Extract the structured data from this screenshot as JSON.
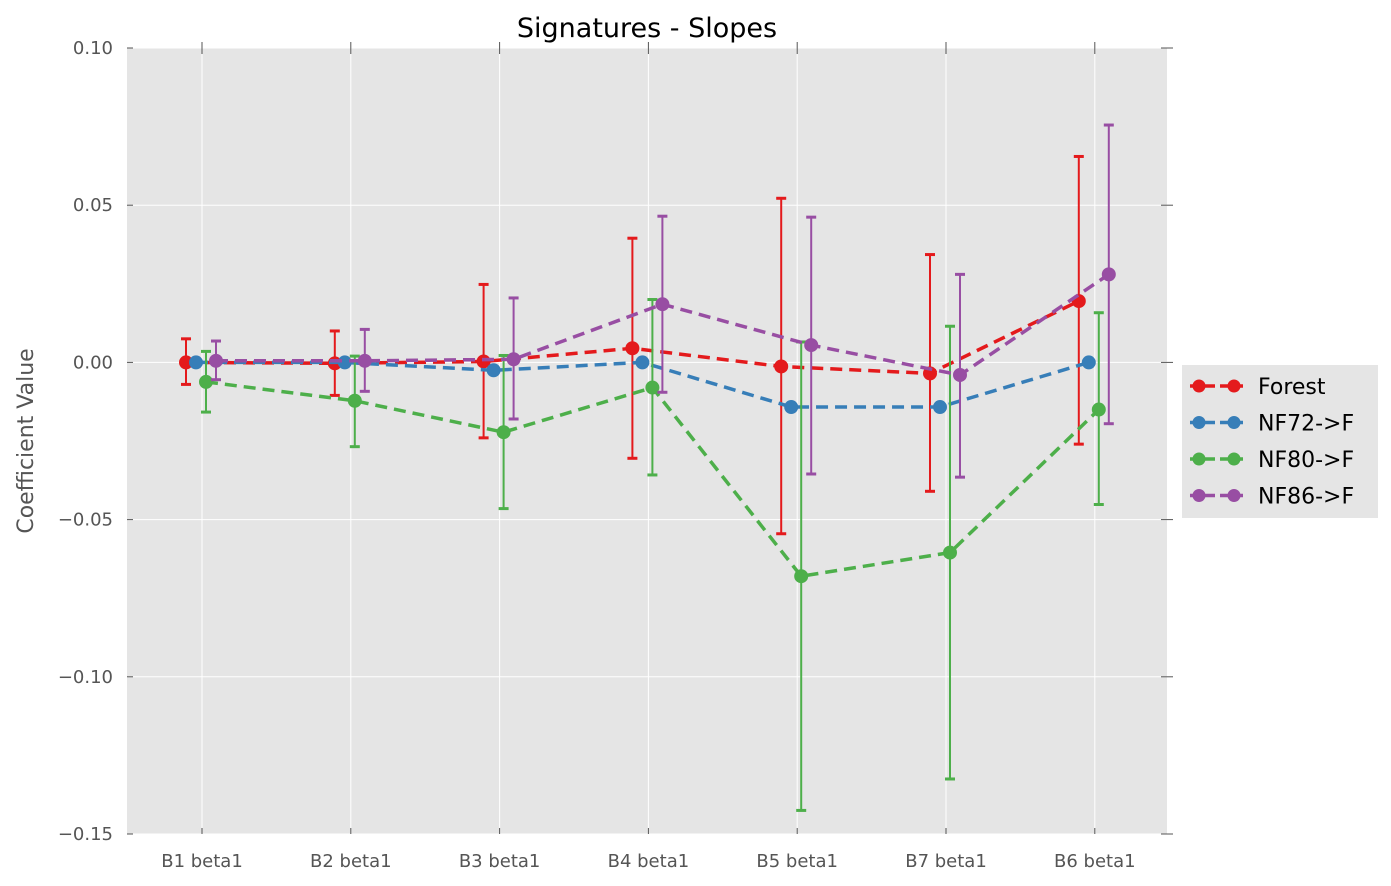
{
  "chart_data": {
    "type": "line",
    "title": "Signatures - Slopes",
    "xlabel": "",
    "ylabel": "Coefficient Value",
    "categories": [
      "B1 beta1",
      "B2 beta1",
      "B3 beta1",
      "B4 beta1",
      "B5 beta1",
      "B7 beta1",
      "B6 beta1"
    ],
    "ylim": [
      -0.15,
      0.1
    ],
    "yticks": [
      0.1,
      0.05,
      0.0,
      -0.05,
      -0.1,
      -0.15
    ],
    "ytick_labels": [
      "0.10",
      "0.05",
      "0.00",
      "−0.05",
      "−0.10",
      "−0.15"
    ],
    "grid": true,
    "background": "#e5e5e5",
    "legend_position": "outside right",
    "line_style": "dashed",
    "marker": "circle",
    "series": [
      {
        "name": "Forest",
        "color": "#e41a1c",
        "values": [
          0.0,
          -0.0003,
          0.0003,
          0.0045,
          -0.0013,
          -0.0035,
          0.0195
        ],
        "err_low": [
          -0.007,
          -0.0105,
          -0.024,
          -0.0305,
          -0.0545,
          -0.041,
          -0.026
        ],
        "err_high": [
          0.0075,
          0.01,
          0.0248,
          0.0395,
          0.0522,
          0.0343,
          0.0655
        ]
      },
      {
        "name": "NF72->F",
        "color": "#377eb8",
        "values": [
          0.0,
          0.0,
          -0.0025,
          0.0,
          -0.0142,
          -0.0142,
          0.0
        ],
        "err_low": null,
        "err_high": null
      },
      {
        "name": "NF80->F",
        "color": "#4daf4a",
        "values": [
          -0.0062,
          -0.0122,
          -0.0222,
          -0.008,
          -0.068,
          -0.0605,
          -0.015
        ],
        "err_low": [
          -0.0158,
          -0.0268,
          -0.0465,
          -0.0358,
          -0.1425,
          -0.1325,
          -0.0452
        ],
        "err_high": [
          0.0035,
          0.002,
          0.0022,
          0.02,
          0.0065,
          0.0115,
          0.0158
        ]
      },
      {
        "name": "NF86->F",
        "color": "#984ea3",
        "values": [
          0.0005,
          0.0005,
          0.001,
          0.0185,
          0.0055,
          -0.004,
          0.028
        ],
        "err_low": [
          -0.0055,
          -0.0092,
          -0.018,
          -0.0095,
          -0.0355,
          -0.0365,
          -0.0195
        ],
        "err_high": [
          0.0068,
          0.0105,
          0.0205,
          0.0465,
          0.0462,
          0.028,
          0.0755
        ]
      }
    ]
  }
}
